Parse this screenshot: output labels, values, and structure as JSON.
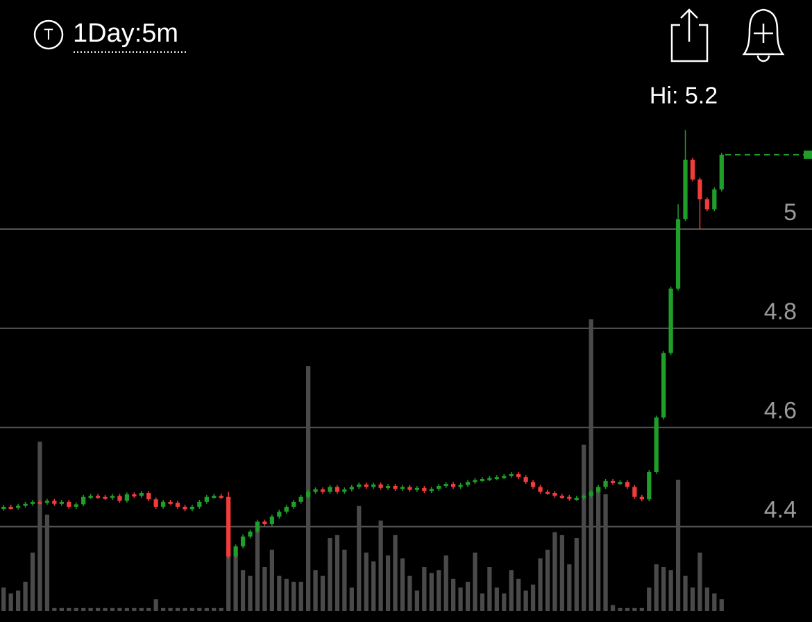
{
  "header": {
    "icon_letter": "T",
    "interval": "1Day:5m"
  },
  "chart_data": {
    "type": "candlestick",
    "high_label": "Hi: 5.2",
    "ylim": [
      4.23,
      5.21
    ],
    "yticks": [
      4.4,
      4.6,
      4.8,
      5
    ],
    "grid": true,
    "up_color": "#1f9e2a",
    "down_color": "#f23b3b",
    "flat_color": "#9a9a9a",
    "volume_color": "#4a4a4a",
    "volume_lim": [
      0,
      100
    ],
    "ohlc": [
      [
        4.436,
        4.444,
        4.432,
        4.44
      ],
      [
        4.44,
        4.444,
        4.434,
        4.438
      ],
      [
        4.438,
        4.446,
        4.434,
        4.442
      ],
      [
        4.442,
        4.45,
        4.438,
        4.446
      ],
      [
        4.446,
        4.454,
        4.442,
        4.45
      ],
      [
        4.45,
        4.454,
        4.444,
        4.448
      ],
      [
        4.448,
        4.456,
        4.444,
        4.452
      ],
      [
        4.452,
        4.456,
        4.442,
        4.446
      ],
      [
        4.446,
        4.454,
        4.442,
        4.45
      ],
      [
        4.45,
        4.454,
        4.436,
        4.44
      ],
      [
        4.44,
        4.449,
        4.436,
        4.445
      ],
      [
        4.445,
        4.464,
        4.441,
        4.46
      ],
      [
        4.46,
        4.466,
        4.456,
        4.462
      ],
      [
        4.462,
        4.466,
        4.456,
        4.46
      ],
      [
        4.46,
        4.464,
        4.454,
        4.458
      ],
      [
        4.458,
        4.466,
        4.454,
        4.462
      ],
      [
        4.462,
        4.466,
        4.448,
        4.452
      ],
      [
        4.452,
        4.469,
        4.448,
        4.465
      ],
      [
        4.465,
        4.469,
        4.458,
        4.462
      ],
      [
        4.462,
        4.472,
        4.458,
        4.468
      ],
      [
        4.468,
        4.472,
        4.451,
        4.455
      ],
      [
        4.455,
        4.459,
        4.436,
        4.44
      ],
      [
        4.44,
        4.454,
        4.436,
        4.45
      ],
      [
        4.45,
        4.454,
        4.444,
        4.448
      ],
      [
        4.448,
        4.452,
        4.436,
        4.44
      ],
      [
        4.44,
        4.444,
        4.431,
        4.435
      ],
      [
        4.435,
        4.444,
        4.431,
        4.44
      ],
      [
        4.44,
        4.454,
        4.436,
        4.45
      ],
      [
        4.45,
        4.464,
        4.446,
        4.46
      ],
      [
        4.46,
        4.466,
        4.456,
        4.462
      ],
      [
        4.462,
        4.466,
        4.456,
        4.46
      ],
      [
        4.46,
        4.47,
        4.336,
        4.34
      ],
      [
        4.34,
        4.364,
        4.336,
        4.36
      ],
      [
        4.36,
        4.384,
        4.356,
        4.38
      ],
      [
        4.38,
        4.394,
        4.376,
        4.39
      ],
      [
        4.39,
        4.414,
        4.386,
        4.41
      ],
      [
        4.41,
        4.414,
        4.401,
        4.405
      ],
      [
        4.405,
        4.424,
        4.401,
        4.42
      ],
      [
        4.42,
        4.434,
        4.416,
        4.43
      ],
      [
        4.43,
        4.444,
        4.426,
        4.44
      ],
      [
        4.44,
        4.454,
        4.436,
        4.45
      ],
      [
        4.45,
        4.464,
        4.446,
        4.46
      ],
      [
        4.46,
        4.474,
        4.456,
        4.47
      ],
      [
        4.47,
        4.479,
        4.466,
        4.475
      ],
      [
        4.475,
        4.479,
        4.466,
        4.47
      ],
      [
        4.47,
        4.484,
        4.466,
        4.48
      ],
      [
        4.48,
        4.484,
        4.466,
        4.47
      ],
      [
        4.47,
        4.479,
        4.466,
        4.475
      ],
      [
        4.475,
        4.484,
        4.471,
        4.48
      ],
      [
        4.48,
        4.489,
        4.476,
        4.485
      ],
      [
        4.485,
        4.489,
        4.476,
        4.48
      ],
      [
        4.48,
        4.489,
        4.476,
        4.485
      ],
      [
        4.485,
        4.489,
        4.474,
        4.478
      ],
      [
        4.478,
        4.486,
        4.474,
        4.482
      ],
      [
        4.482,
        4.486,
        4.472,
        4.476
      ],
      [
        4.476,
        4.484,
        4.472,
        4.48
      ],
      [
        4.48,
        4.484,
        4.47,
        4.474
      ],
      [
        4.474,
        4.482,
        4.47,
        4.478
      ],
      [
        4.478,
        4.482,
        4.468,
        4.472
      ],
      [
        4.472,
        4.48,
        4.468,
        4.476
      ],
      [
        4.476,
        4.486,
        4.472,
        4.482
      ],
      [
        4.482,
        4.49,
        4.478,
        4.486
      ],
      [
        4.486,
        4.49,
        4.476,
        4.48
      ],
      [
        4.48,
        4.488,
        4.476,
        4.484
      ],
      [
        4.484,
        4.494,
        4.48,
        4.49
      ],
      [
        4.49,
        4.498,
        4.486,
        4.494
      ],
      [
        4.494,
        4.5,
        4.49,
        4.496
      ],
      [
        4.496,
        4.502,
        4.492,
        4.498
      ],
      [
        4.498,
        4.504,
        4.494,
        4.5
      ],
      [
        4.5,
        4.506,
        4.496,
        4.502
      ],
      [
        4.502,
        4.51,
        4.498,
        4.506
      ],
      [
        4.506,
        4.51,
        4.496,
        4.5
      ],
      [
        4.5,
        4.504,
        4.486,
        4.49
      ],
      [
        4.49,
        4.494,
        4.476,
        4.48
      ],
      [
        4.48,
        4.484,
        4.466,
        4.47
      ],
      [
        4.47,
        4.474,
        4.464,
        4.468
      ],
      [
        4.468,
        4.472,
        4.458,
        4.462
      ],
      [
        4.462,
        4.466,
        4.456,
        4.46
      ],
      [
        4.46,
        4.464,
        4.452,
        4.456
      ],
      [
        4.456,
        4.462,
        4.452,
        4.458
      ],
      [
        4.458,
        4.466,
        4.454,
        4.462
      ],
      [
        4.462,
        4.474,
        4.458,
        4.47
      ],
      [
        4.47,
        4.484,
        4.466,
        4.48
      ],
      [
        4.48,
        4.496,
        4.476,
        4.492
      ],
      [
        4.492,
        4.496,
        4.484,
        4.488
      ],
      [
        4.488,
        4.494,
        4.484,
        4.49
      ],
      [
        4.49,
        4.494,
        4.476,
        4.48
      ],
      [
        4.48,
        4.484,
        4.456,
        4.46
      ],
      [
        4.46,
        4.464,
        4.451,
        4.455
      ],
      [
        4.455,
        4.514,
        4.451,
        4.51
      ],
      [
        4.51,
        4.624,
        4.506,
        4.62
      ],
      [
        4.62,
        4.754,
        4.616,
        4.75
      ],
      [
        4.75,
        4.884,
        4.746,
        4.88
      ],
      [
        4.88,
        5.05,
        4.876,
        5.02
      ],
      [
        5.02,
        5.2,
        5.016,
        5.14
      ],
      [
        5.14,
        5.144,
        5.096,
        5.1
      ],
      [
        5.1,
        5.104,
        5.0,
        5.06
      ],
      [
        5.06,
        5.064,
        5.036,
        5.04
      ],
      [
        5.04,
        5.084,
        5.036,
        5.08
      ],
      [
        5.08,
        5.154,
        5.076,
        5.15
      ]
    ],
    "volume": [
      8,
      6,
      7,
      10,
      20,
      58,
      33,
      1,
      1,
      1,
      1,
      1,
      1,
      1,
      1,
      1,
      1,
      1,
      1,
      1,
      1,
      4,
      1,
      1,
      1,
      1,
      1,
      1,
      1,
      1,
      1,
      21,
      20,
      14,
      12,
      30,
      15,
      21,
      12,
      11,
      10,
      10,
      84,
      14,
      12,
      25,
      26,
      21,
      8,
      36,
      20,
      17,
      31,
      19,
      26,
      18,
      12,
      7,
      15,
      13,
      14,
      19,
      11,
      8,
      10,
      20,
      6,
      15,
      8,
      6,
      14,
      11,
      7,
      9,
      18,
      21,
      27,
      26,
      16,
      25,
      57,
      100,
      42,
      40,
      2,
      1,
      1,
      1,
      1,
      8,
      16,
      15,
      14,
      45,
      12,
      8,
      20,
      8,
      6,
      4
    ]
  }
}
